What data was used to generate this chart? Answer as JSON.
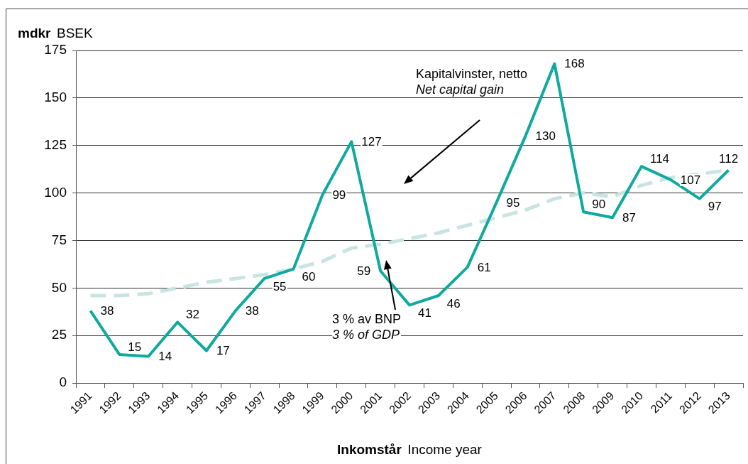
{
  "chart_data": {
    "type": "line",
    "xlabel": "Inkomstår Income year",
    "ylabel": "mdkr BSEK",
    "categories": [
      "1991",
      "1992",
      "1993",
      "1994",
      "1995",
      "1996",
      "1997",
      "1998",
      "1999",
      "2000",
      "2001",
      "2002",
      "2003",
      "2004",
      "2005",
      "2006",
      "2007",
      "2008",
      "2009",
      "2010",
      "2011",
      "2012",
      "2013"
    ],
    "series": [
      {
        "name": "Kapitalvinster, netto\nNet capital gain",
        "color": "#0fa99e",
        "line_style": "solid",
        "values": [
          38,
          15,
          14,
          32,
          17,
          38,
          55,
          60,
          99,
          127,
          59,
          41,
          46,
          61,
          95,
          130,
          168,
          90,
          87,
          114,
          107,
          97,
          112
        ],
        "value_labels": [
          "38",
          "15",
          "14",
          "32",
          "17",
          "38",
          "55",
          "60",
          "99",
          "127",
          "59",
          "41",
          "46",
          "61",
          "95",
          "130",
          "168",
          "90",
          "87",
          "114",
          "107",
          "97",
          "112"
        ]
      },
      {
        "name": "3 % av BNP\n3 % of GDP",
        "color": "#c9e5e2",
        "line_style": "dashed",
        "values": [
          46,
          46,
          47,
          50,
          53,
          55,
          57,
          60,
          64,
          71,
          73,
          76,
          79,
          83,
          87,
          91,
          97,
          100,
          98,
          104,
          108,
          110,
          112
        ]
      }
    ],
    "ylim": [
      0,
      175
    ],
    "yticks": [
      0,
      25,
      50,
      75,
      100,
      125,
      150,
      175
    ],
    "grid": "y",
    "legend": false,
    "marker": "none"
  }
}
